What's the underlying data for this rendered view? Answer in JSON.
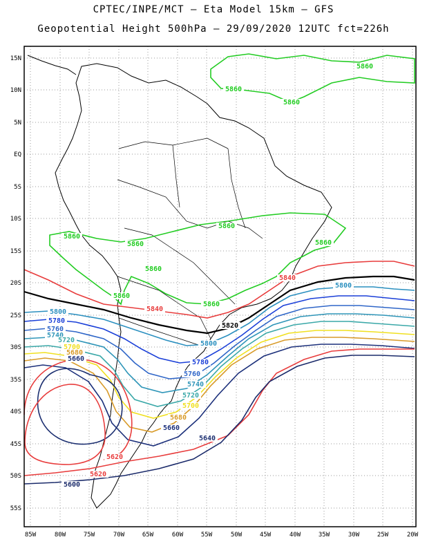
{
  "title_line1": "CPTEC/INPE/MCT —  Eta Model 15km — GFS",
  "title_line2": "Geopotential Height 500hPa — 29/09/2020 12UTC fct=226h",
  "lat_labels": [
    "15N",
    "10N",
    "5N",
    "EQ",
    "5S",
    "10S",
    "15S",
    "20S",
    "25S",
    "30S",
    "35S",
    "40S",
    "45S",
    "50S",
    "55S"
  ],
  "lon_labels": [
    "85W",
    "80W",
    "75W",
    "70W",
    "65W",
    "60W",
    "55W",
    "50W",
    "45W",
    "40W",
    "35W",
    "30W",
    "25W",
    "20W"
  ],
  "contour_levels": {
    "c5860": "5860",
    "c5840": "5840",
    "c5820": "5820",
    "c5800": "5800",
    "c5780": "5780",
    "c5760": "5760",
    "c5740": "5740",
    "c5720": "5720",
    "c5700": "5700",
    "c5680": "5680",
    "c5660": "5660",
    "c5640": "5640",
    "c5620": "5620",
    "c5600": "5600"
  },
  "colors": {
    "c5860": "#22cc22",
    "c5840": "#e83c3c",
    "c5820": "#000000",
    "c5800": "#2a8fbf",
    "c5780": "#1a3fd8",
    "c5760": "#2f66c8",
    "c5740": "#2e95b8",
    "c5720": "#3aa8a8",
    "c5700": "#f0e020",
    "c5680": "#d89a28",
    "c5660": "#1b2f7a",
    "c5640": "#1c2f70",
    "c5620": "#e83c3c",
    "c5600": "#1a2a6a"
  }
}
